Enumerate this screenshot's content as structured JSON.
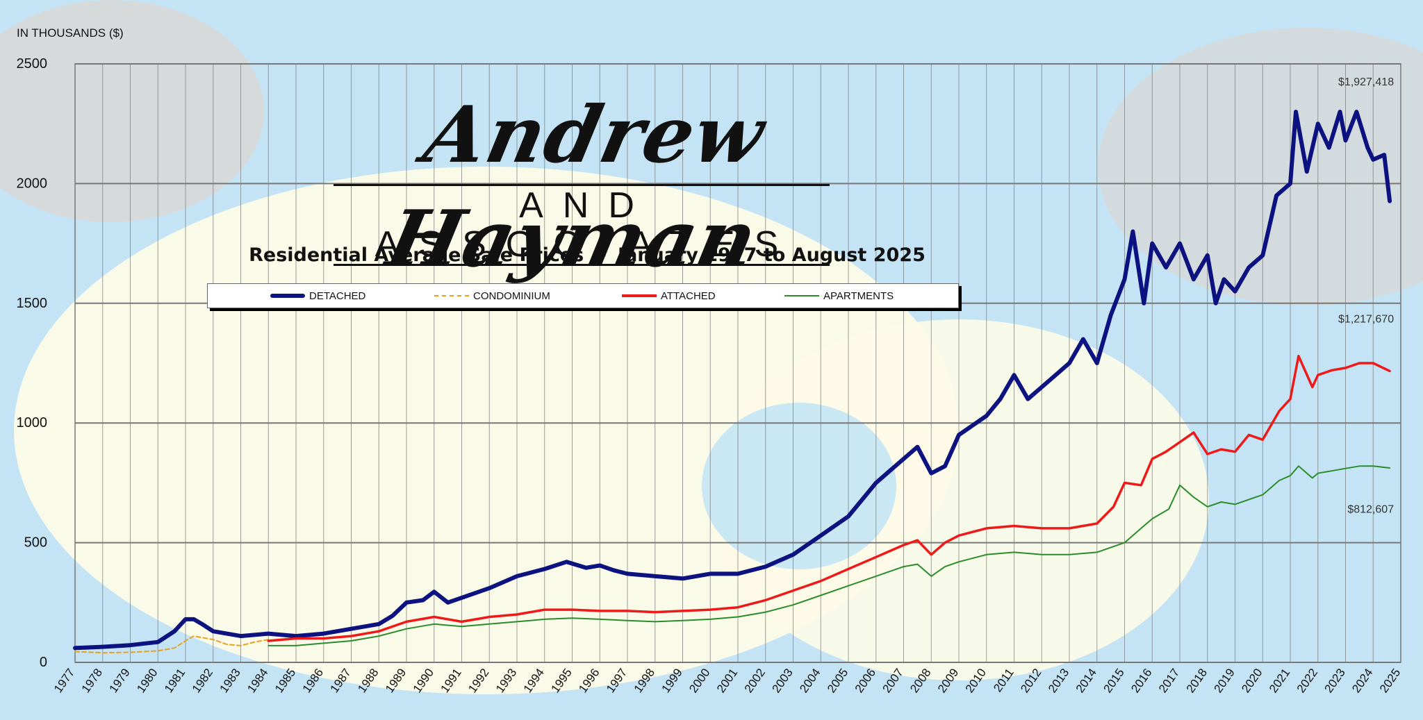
{
  "page": {
    "y_unit_label": "IN THOUSANDS ($)",
    "logo": {
      "script_text": "Andrew Hayman",
      "subtitle_text": "AND ASSOCIATES"
    }
  },
  "colors": {
    "detached": "#0c1280",
    "condominium": "#e8a020",
    "attached": "#ee1a1a",
    "apartments": "#2a8c2a",
    "grid": "#777777",
    "background": "#fdfbe8"
  },
  "chart_data": {
    "type": "line",
    "title": "Residential Average Sale Prices  -  January 1977 to August 2025",
    "ylabel": "IN THOUSANDS ($)",
    "ylim": [
      0,
      2500
    ],
    "yticks": [
      0,
      500,
      1000,
      1500,
      2000,
      2500
    ],
    "xlim": [
      1977,
      2025
    ],
    "xticks": [
      1977,
      1978,
      1979,
      1980,
      1981,
      1982,
      1983,
      1984,
      1985,
      1986,
      1987,
      1988,
      1989,
      1990,
      1991,
      1992,
      1993,
      1994,
      1995,
      1996,
      1997,
      1998,
      1999,
      2000,
      2001,
      2002,
      2003,
      2004,
      2005,
      2006,
      2007,
      2008,
      2009,
      2010,
      2011,
      2012,
      2013,
      2014,
      2015,
      2016,
      2017,
      2018,
      2019,
      2020,
      2021,
      2022,
      2023,
      2024,
      2025
    ],
    "grid": true,
    "legend_position": "top-center",
    "series": [
      {
        "name": "DETACHED",
        "style": "thick-solid",
        "x": [
          1977,
          1978,
          1979,
          1980,
          1980.6,
          1981,
          1981.3,
          1981.6,
          1982,
          1983,
          1984,
          1985,
          1986,
          1987,
          1988,
          1988.5,
          1989,
          1989.6,
          1990,
          1990.5,
          1991,
          1992,
          1993,
          1994,
          1994.8,
          1995.5,
          1996,
          1996.5,
          1997,
          1998,
          1999,
          2000,
          2001,
          2002,
          2003,
          2004,
          2005,
          2006,
          2007,
          2007.5,
          2008,
          2008.5,
          2009,
          2010,
          2010.5,
          2011,
          2011.5,
          2012,
          2013,
          2013.5,
          2014,
          2014.5,
          2015,
          2015.3,
          2015.7,
          2016,
          2016.5,
          2017,
          2017.5,
          2018,
          2018.3,
          2018.6,
          2019,
          2019.5,
          2020,
          2020.5,
          2021,
          2021.2,
          2021.6,
          2022,
          2022.4,
          2022.8,
          2023,
          2023.4,
          2023.8,
          2024,
          2024.4,
          2024.6
        ],
        "values": [
          60,
          65,
          72,
          85,
          130,
          180,
          180,
          160,
          130,
          110,
          120,
          110,
          120,
          140,
          160,
          195,
          250,
          260,
          295,
          250,
          270,
          310,
          360,
          390,
          420,
          395,
          405,
          385,
          370,
          360,
          350,
          370,
          370,
          400,
          450,
          530,
          610,
          750,
          850,
          900,
          790,
          820,
          950,
          1030,
          1100,
          1200,
          1100,
          1150,
          1250,
          1350,
          1250,
          1450,
          1600,
          1800,
          1500,
          1750,
          1650,
          1750,
          1600,
          1700,
          1500,
          1600,
          1550,
          1650,
          1700,
          1950,
          2000,
          2300,
          2050,
          2250,
          2150,
          2300,
          2180,
          2300,
          2150,
          2100,
          2120,
          1927
        ]
      },
      {
        "name": "CONDOMINIUM",
        "style": "dashed",
        "x": [
          1977,
          1978,
          1979,
          1980,
          1980.6,
          1981,
          1981.3,
          1982,
          1982.5,
          1983,
          1983.5,
          1984
        ],
        "values": [
          45,
          40,
          42,
          48,
          60,
          90,
          110,
          95,
          75,
          70,
          85,
          95
        ]
      },
      {
        "name": "ATTACHED",
        "style": "solid",
        "x": [
          1984,
          1985,
          1986,
          1987,
          1988,
          1989,
          1990,
          1991,
          1992,
          1993,
          1994,
          1995,
          1996,
          1997,
          1998,
          1999,
          2000,
          2001,
          2002,
          2003,
          2004,
          2005,
          2006,
          2007,
          2007.5,
          2008,
          2008.5,
          2009,
          2010,
          2011,
          2012,
          2013,
          2014,
          2014.6,
          2015,
          2015.6,
          2016,
          2016.5,
          2017,
          2017.5,
          2018,
          2018.5,
          2019,
          2019.5,
          2020,
          2020.6,
          2021,
          2021.3,
          2021.8,
          2022,
          2022.5,
          2023,
          2023.5,
          2024,
          2024.6
        ],
        "values": [
          90,
          100,
          100,
          110,
          130,
          170,
          190,
          170,
          190,
          200,
          220,
          220,
          215,
          215,
          210,
          215,
          220,
          230,
          260,
          300,
          340,
          390,
          440,
          490,
          510,
          450,
          500,
          530,
          560,
          570,
          560,
          560,
          580,
          650,
          750,
          740,
          850,
          880,
          920,
          960,
          870,
          890,
          880,
          950,
          930,
          1050,
          1100,
          1280,
          1150,
          1200,
          1220,
          1230,
          1250,
          1250,
          1217
        ]
      },
      {
        "name": "APARTMENTS",
        "style": "thin-solid",
        "x": [
          1984,
          1985,
          1986,
          1987,
          1988,
          1989,
          1990,
          1991,
          1992,
          1993,
          1994,
          1995,
          1996,
          1997,
          1998,
          1999,
          2000,
          2001,
          2002,
          2003,
          2004,
          2005,
          2006,
          2007,
          2007.5,
          2008,
          2008.5,
          2009,
          2010,
          2011,
          2012,
          2013,
          2014,
          2015,
          2015.6,
          2016,
          2016.6,
          2017,
          2017.5,
          2018,
          2018.5,
          2019,
          2020,
          2020.6,
          2021,
          2021.3,
          2021.8,
          2022,
          2022.5,
          2023,
          2023.5,
          2024,
          2024.6
        ],
        "values": [
          70,
          70,
          80,
          90,
          110,
          140,
          160,
          150,
          160,
          170,
          180,
          185,
          180,
          175,
          170,
          175,
          180,
          190,
          210,
          240,
          280,
          320,
          360,
          400,
          410,
          360,
          400,
          420,
          450,
          460,
          450,
          450,
          460,
          500,
          560,
          600,
          640,
          740,
          690,
          650,
          670,
          660,
          700,
          760,
          780,
          820,
          770,
          790,
          800,
          810,
          820,
          820,
          812
        ]
      }
    ],
    "annotations": [
      {
        "text": "$1,927,418",
        "series": "DETACHED",
        "x": 2024.6,
        "y": 2410
      },
      {
        "text": "$1,217,670",
        "series": "ATTACHED",
        "x": 2024.6,
        "y": 1420
      },
      {
        "text": "$812,607",
        "series": "APARTMENTS",
        "x": 2024.6,
        "y": 625
      }
    ],
    "legend": [
      "DETACHED",
      "CONDOMINIUM",
      "ATTACHED",
      "APARTMENTS"
    ]
  }
}
